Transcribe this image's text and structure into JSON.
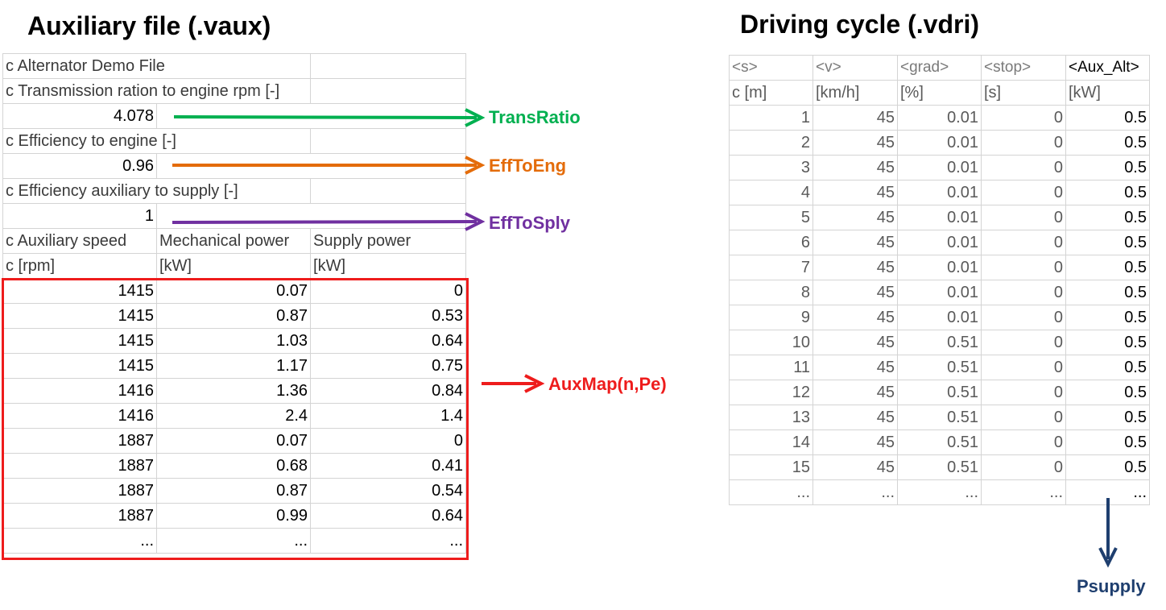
{
  "aux": {
    "title": "Auxiliary file (.vaux)",
    "rows": [
      {
        "a": "c Alternator Demo File",
        "b": "",
        "c": "",
        "type": "comment"
      },
      {
        "a": "c Transmission ration to engine rpm [-]",
        "b": "",
        "c": "",
        "type": "comment"
      },
      {
        "a": "4.078",
        "b": "",
        "c": "",
        "type": "value"
      },
      {
        "a": "c Efficiency to engine [-]",
        "b": "",
        "c": "",
        "type": "comment"
      },
      {
        "a": "0.96",
        "b": "",
        "c": "",
        "type": "value"
      },
      {
        "a": "c Efficiency auxiliary to supply [-]",
        "b": "",
        "c": "",
        "type": "comment"
      },
      {
        "a": "1",
        "b": "",
        "c": "",
        "type": "value"
      },
      {
        "a": "c Auxiliary speed",
        "b": "Mechanical power",
        "c": "Supply power",
        "type": "header"
      },
      {
        "a": "c [rpm]",
        "b": "[kW]",
        "c": "[kW]",
        "type": "header"
      },
      {
        "a": "1415",
        "b": "0.07",
        "c": "0",
        "type": "data"
      },
      {
        "a": "1415",
        "b": "0.87",
        "c": "0.53",
        "type": "data"
      },
      {
        "a": "1415",
        "b": "1.03",
        "c": "0.64",
        "type": "data"
      },
      {
        "a": "1415",
        "b": "1.17",
        "c": "0.75",
        "type": "data"
      },
      {
        "a": "1416",
        "b": "1.36",
        "c": "0.84",
        "type": "data"
      },
      {
        "a": "1416",
        "b": "2.4",
        "c": "1.4",
        "type": "data"
      },
      {
        "a": "1887",
        "b": "0.07",
        "c": "0",
        "type": "data"
      },
      {
        "a": "1887",
        "b": "0.68",
        "c": "0.41",
        "type": "data"
      },
      {
        "a": "1887",
        "b": "0.87",
        "c": "0.54",
        "type": "data"
      },
      {
        "a": "1887",
        "b": "0.99",
        "c": "0.64",
        "type": "data"
      },
      {
        "a": "...",
        "b": "...",
        "c": "...",
        "type": "data"
      }
    ]
  },
  "cycle": {
    "title": "Driving cycle (.vdri)",
    "headers": [
      "<s>",
      "<v>",
      "<grad>",
      "<stop>",
      "<Aux_Alt>"
    ],
    "units": [
      "c [m]",
      "[km/h]",
      "[%]",
      "[s]",
      "[kW]"
    ],
    "rows": [
      [
        "1",
        "45",
        "0.01",
        "0",
        "0.5"
      ],
      [
        "2",
        "45",
        "0.01",
        "0",
        "0.5"
      ],
      [
        "3",
        "45",
        "0.01",
        "0",
        "0.5"
      ],
      [
        "4",
        "45",
        "0.01",
        "0",
        "0.5"
      ],
      [
        "5",
        "45",
        "0.01",
        "0",
        "0.5"
      ],
      [
        "6",
        "45",
        "0.01",
        "0",
        "0.5"
      ],
      [
        "7",
        "45",
        "0.01",
        "0",
        "0.5"
      ],
      [
        "8",
        "45",
        "0.01",
        "0",
        "0.5"
      ],
      [
        "9",
        "45",
        "0.01",
        "0",
        "0.5"
      ],
      [
        "10",
        "45",
        "0.51",
        "0",
        "0.5"
      ],
      [
        "11",
        "45",
        "0.51",
        "0",
        "0.5"
      ],
      [
        "12",
        "45",
        "0.51",
        "0",
        "0.5"
      ],
      [
        "13",
        "45",
        "0.51",
        "0",
        "0.5"
      ],
      [
        "14",
        "45",
        "0.51",
        "0",
        "0.5"
      ],
      [
        "15",
        "45",
        "0.51",
        "0",
        "0.5"
      ],
      [
        "...",
        "...",
        "...",
        "...",
        "..."
      ]
    ]
  },
  "labels": {
    "trans_ratio": "TransRatio",
    "eff_to_eng": "EffToEng",
    "eff_to_sply": "EffToSply",
    "aux_map": "AuxMap(n,Pe)",
    "psupply": "Psupply"
  },
  "colors": {
    "trans_ratio": "#00b050",
    "eff_to_eng": "#e46c0a",
    "eff_to_sply": "#7030a0",
    "aux_map": "#ee1c1c",
    "psupply": "#1f3f6f"
  }
}
